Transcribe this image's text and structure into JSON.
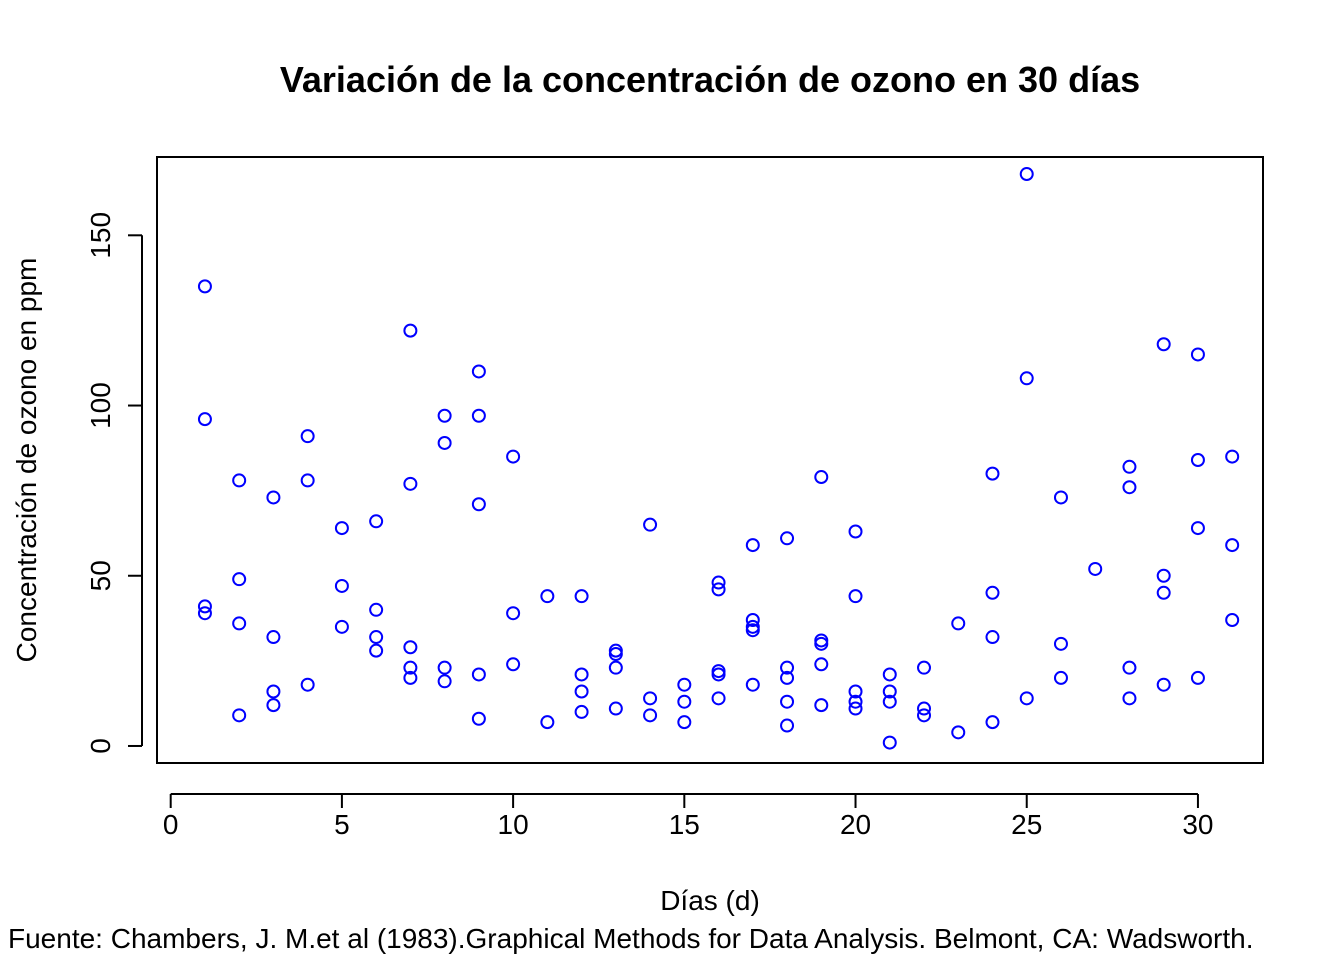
{
  "chart_data": {
    "type": "scatter",
    "title": "Variación de la concentración de ozono en 30 días",
    "xlabel": "Días (d)",
    "ylabel": "Concentración de ozono en ppm",
    "caption": "Fuente: Chambers, J. M.et al (1983).Graphical Methods for Data Analysis. Belmont, CA: Wadsworth.",
    "xlim": [
      -0.4,
      31.9
    ],
    "ylim": [
      -5,
      173
    ],
    "xticks": [
      0,
      5,
      10,
      15,
      20,
      25,
      30
    ],
    "yticks": [
      0,
      50,
      100,
      150
    ],
    "marker": "open-circle",
    "color": "#0000ff",
    "grid": false,
    "points": [
      [
        1,
        135
      ],
      [
        1,
        96
      ],
      [
        1,
        41
      ],
      [
        1,
        39
      ],
      [
        2,
        78
      ],
      [
        2,
        49
      ],
      [
        2,
        36
      ],
      [
        2,
        9
      ],
      [
        3,
        73
      ],
      [
        3,
        32
      ],
      [
        3,
        16
      ],
      [
        3,
        12
      ],
      [
        4,
        91
      ],
      [
        4,
        78
      ],
      [
        4,
        18
      ],
      [
        5,
        64
      ],
      [
        5,
        47
      ],
      [
        5,
        35
      ],
      [
        6,
        66
      ],
      [
        6,
        40
      ],
      [
        6,
        32
      ],
      [
        6,
        28
      ],
      [
        7,
        122
      ],
      [
        7,
        77
      ],
      [
        7,
        29
      ],
      [
        7,
        23
      ],
      [
        7,
        20
      ],
      [
        8,
        97
      ],
      [
        8,
        89
      ],
      [
        8,
        23
      ],
      [
        8,
        19
      ],
      [
        9,
        110
      ],
      [
        9,
        97
      ],
      [
        9,
        71
      ],
      [
        9,
        21
      ],
      [
        9,
        8
      ],
      [
        10,
        85
      ],
      [
        10,
        39
      ],
      [
        10,
        24
      ],
      [
        11,
        44
      ],
      [
        11,
        7
      ],
      [
        12,
        44
      ],
      [
        12,
        21
      ],
      [
        12,
        16
      ],
      [
        12,
        10
      ],
      [
        13,
        28
      ],
      [
        13,
        27
      ],
      [
        13,
        23
      ],
      [
        13,
        11
      ],
      [
        14,
        65
      ],
      [
        14,
        14
      ],
      [
        14,
        9
      ],
      [
        15,
        18
      ],
      [
        15,
        13
      ],
      [
        15,
        7
      ],
      [
        16,
        48
      ],
      [
        16,
        46
      ],
      [
        16,
        22
      ],
      [
        16,
        21
      ],
      [
        16,
        14
      ],
      [
        17,
        59
      ],
      [
        17,
        37
      ],
      [
        17,
        35
      ],
      [
        17,
        34
      ],
      [
        17,
        18
      ],
      [
        18,
        61
      ],
      [
        18,
        23
      ],
      [
        18,
        20
      ],
      [
        18,
        13
      ],
      [
        18,
        6
      ],
      [
        19,
        79
      ],
      [
        19,
        31
      ],
      [
        19,
        30
      ],
      [
        19,
        24
      ],
      [
        19,
        12
      ],
      [
        20,
        63
      ],
      [
        20,
        44
      ],
      [
        20,
        16
      ],
      [
        20,
        13
      ],
      [
        20,
        11
      ],
      [
        21,
        21
      ],
      [
        21,
        16
      ],
      [
        21,
        13
      ],
      [
        21,
        1
      ],
      [
        22,
        23
      ],
      [
        22,
        11
      ],
      [
        22,
        9
      ],
      [
        23,
        36
      ],
      [
        23,
        4
      ],
      [
        24,
        80
      ],
      [
        24,
        45
      ],
      [
        24,
        32
      ],
      [
        24,
        7
      ],
      [
        25,
        168
      ],
      [
        25,
        108
      ],
      [
        25,
        14
      ],
      [
        26,
        73
      ],
      [
        26,
        30
      ],
      [
        26,
        20
      ],
      [
        27,
        52
      ],
      [
        28,
        82
      ],
      [
        28,
        76
      ],
      [
        28,
        23
      ],
      [
        28,
        14
      ],
      [
        29,
        118
      ],
      [
        29,
        50
      ],
      [
        29,
        45
      ],
      [
        29,
        18
      ],
      [
        30,
        115
      ],
      [
        30,
        84
      ],
      [
        30,
        64
      ],
      [
        30,
        20
      ],
      [
        31,
        85
      ],
      [
        31,
        59
      ],
      [
        31,
        37
      ]
    ]
  }
}
